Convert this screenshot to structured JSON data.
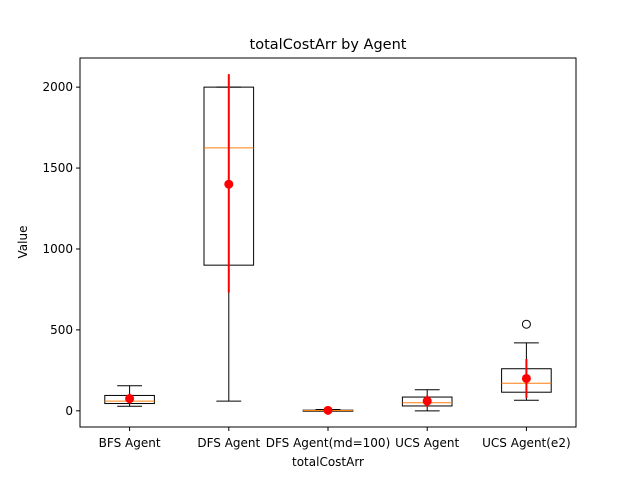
{
  "chart_data": {
    "type": "box",
    "title": "totalCostArr by Agent",
    "xlabel": "totalCostArr",
    "ylabel": "Value",
    "ylim": [
      -100,
      2180
    ],
    "yticks": [
      0,
      500,
      1000,
      1500,
      2000
    ],
    "grid": false,
    "categories": [
      "BFS Agent",
      "DFS Agent",
      "DFS Agent(md=100)",
      "UCS Agent",
      "UCS Agent(e2)"
    ],
    "boxes": [
      {
        "whisker_low": 28,
        "q1": 45,
        "median": 60,
        "q3": 95,
        "whisker_high": 155,
        "mean": 75,
        "std_low": 45,
        "std_high": 105,
        "outliers": []
      },
      {
        "whisker_low": 60,
        "q1": 900,
        "median": 1625,
        "q3": 2000,
        "whisker_high": 2000,
        "mean": 1400,
        "std_low": 730,
        "std_high": 2080,
        "outliers": []
      },
      {
        "whisker_low": 0,
        "q1": 0,
        "median": 2,
        "q3": 4,
        "whisker_high": 8,
        "mean": 3,
        "std_low": 0,
        "std_high": 6,
        "outliers": []
      },
      {
        "whisker_low": 0,
        "q1": 30,
        "median": 50,
        "q3": 85,
        "whisker_high": 130,
        "mean": 60,
        "std_low": 25,
        "std_high": 95,
        "outliers": []
      },
      {
        "whisker_low": 65,
        "q1": 115,
        "median": 170,
        "q3": 260,
        "whisker_high": 420,
        "mean": 200,
        "std_low": 80,
        "std_high": 320,
        "outliers": [
          535
        ]
      }
    ],
    "colors": {
      "box": "#000000",
      "median": "#ff7f0e",
      "mean": "#ff0000",
      "stdbar": "#ff0000",
      "outlier": "#000000"
    }
  }
}
